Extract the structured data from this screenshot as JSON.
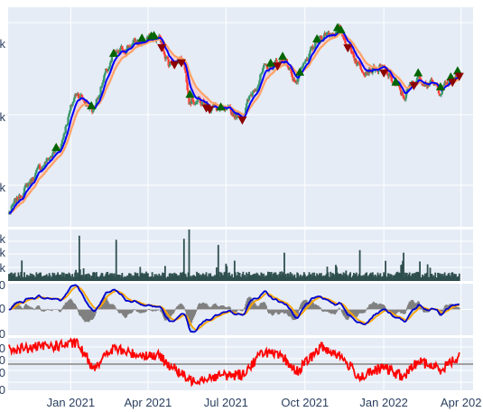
{
  "chart_data": {
    "type": "line",
    "x_ticks": [
      "Jan 2021",
      "Apr 2021",
      "Jul 2021",
      "Oct 2021",
      "Jan 2022",
      "Apr 202"
    ],
    "x_range": [
      "2020-10-20",
      "2022-04-15"
    ],
    "colors": {
      "plot_bg": "#e5ecf6",
      "grid": "#ffffff",
      "candle_up": "#3d9970",
      "candle_down": "#ff4136",
      "ema_fast": "#0000ff",
      "ema_slow": "#ffa366",
      "cloud_fill": "#f5c7cc",
      "volume": "#2f4f4f",
      "macd_line": "#0000cc",
      "signal_line": "#ffa500",
      "macd_fill": "#add8e6",
      "histogram": "#808080",
      "rsi": "#ff0000",
      "rsi_ref": "#a0a0a0",
      "buy_marker": "#006400",
      "sell_marker": "#8b0000"
    },
    "panels": [
      {
        "name": "price",
        "y_tick_labels": [
          "k",
          "k",
          "k"
        ],
        "series": [
          {
            "type": "candlestick"
          },
          {
            "type": "line",
            "color": "ema_fast"
          },
          {
            "type": "line",
            "color": "ema_slow"
          }
        ],
        "signal_dates": {
          "buy": [
            "2020-12-15",
            "2021-01-25",
            "2021-02-20",
            "2021-03-25",
            "2021-04-05",
            "2021-04-08",
            "2021-05-20",
            "2021-06-25",
            "2021-08-22",
            "2021-09-05",
            "2021-09-25",
            "2021-10-15",
            "2021-11-08",
            "2021-11-12",
            "2022-01-15",
            "2022-02-10",
            "2022-03-08",
            "2022-03-20",
            "2022-03-28"
          ],
          "sell": [
            "2021-04-17",
            "2021-05-02",
            "2021-05-10",
            "2021-06-08",
            "2021-06-12",
            "2021-07-20",
            "2021-08-30",
            "2021-11-20",
            "2022-01-01",
            "2022-02-05",
            "2022-03-22",
            "2022-03-30"
          ]
        }
      },
      {
        "name": "volume",
        "y_tick_labels": [
          "k",
          "k",
          "k"
        ]
      },
      {
        "name": "macd",
        "y_tick_labels": [
          "0",
          "0",
          "0"
        ]
      },
      {
        "name": "rsi",
        "y_tick_labels": [
          "0",
          "0",
          "0",
          "0"
        ]
      }
    ],
    "price_path": [
      [
        "2020-10-21",
        11900
      ],
      [
        "2020-11-10",
        15300
      ],
      [
        "2020-12-01",
        19200
      ],
      [
        "2020-12-20",
        22500
      ],
      [
        "2021-01-08",
        38000
      ],
      [
        "2021-01-27",
        31500
      ],
      [
        "2021-02-20",
        53000
      ],
      [
        "2021-03-13",
        60000
      ],
      [
        "2021-04-14",
        63500
      ],
      [
        "2021-04-25",
        50000
      ],
      [
        "2021-05-12",
        52000
      ],
      [
        "2021-05-19",
        36000
      ],
      [
        "2021-06-22",
        32000
      ],
      [
        "2021-07-20",
        30000
      ],
      [
        "2021-08-14",
        46500
      ],
      [
        "2021-09-07",
        52000
      ],
      [
        "2021-09-21",
        41000
      ],
      [
        "2021-10-20",
        65000
      ],
      [
        "2021-11-10",
        68000
      ],
      [
        "2021-12-04",
        48000
      ],
      [
        "2022-01-01",
        47000
      ],
      [
        "2022-01-24",
        36000
      ],
      [
        "2022-02-10",
        44000
      ],
      [
        "2022-03-08",
        38500
      ],
      [
        "2022-03-30",
        45500
      ]
    ],
    "volume_spikes": [
      [
        "2021-01-11",
        88
      ],
      [
        "2021-02-23",
        80
      ],
      [
        "2021-05-19",
        100
      ],
      [
        "2021-05-13",
        82
      ],
      [
        "2021-06-22",
        70
      ],
      [
        "2021-09-07",
        55
      ],
      [
        "2021-12-04",
        60
      ],
      [
        "2022-01-24",
        55
      ]
    ],
    "rsi_path": [
      [
        "2020-10-21",
        72
      ],
      [
        "2020-12-16",
        78
      ],
      [
        "2021-01-08",
        82
      ],
      [
        "2021-01-27",
        45
      ],
      [
        "2021-02-20",
        74
      ],
      [
        "2021-03-13",
        66
      ],
      [
        "2021-04-14",
        62
      ],
      [
        "2021-05-19",
        25
      ],
      [
        "2021-06-22",
        32
      ],
      [
        "2021-07-20",
        34
      ],
      [
        "2021-08-14",
        70
      ],
      [
        "2021-09-07",
        58
      ],
      [
        "2021-09-21",
        38
      ],
      [
        "2021-10-20",
        76
      ],
      [
        "2021-11-10",
        64
      ],
      [
        "2021-12-04",
        30
      ],
      [
        "2022-01-01",
        45
      ],
      [
        "2022-01-24",
        30
      ],
      [
        "2022-02-10",
        55
      ],
      [
        "2022-03-08",
        42
      ],
      [
        "2022-03-30",
        62
      ]
    ]
  }
}
